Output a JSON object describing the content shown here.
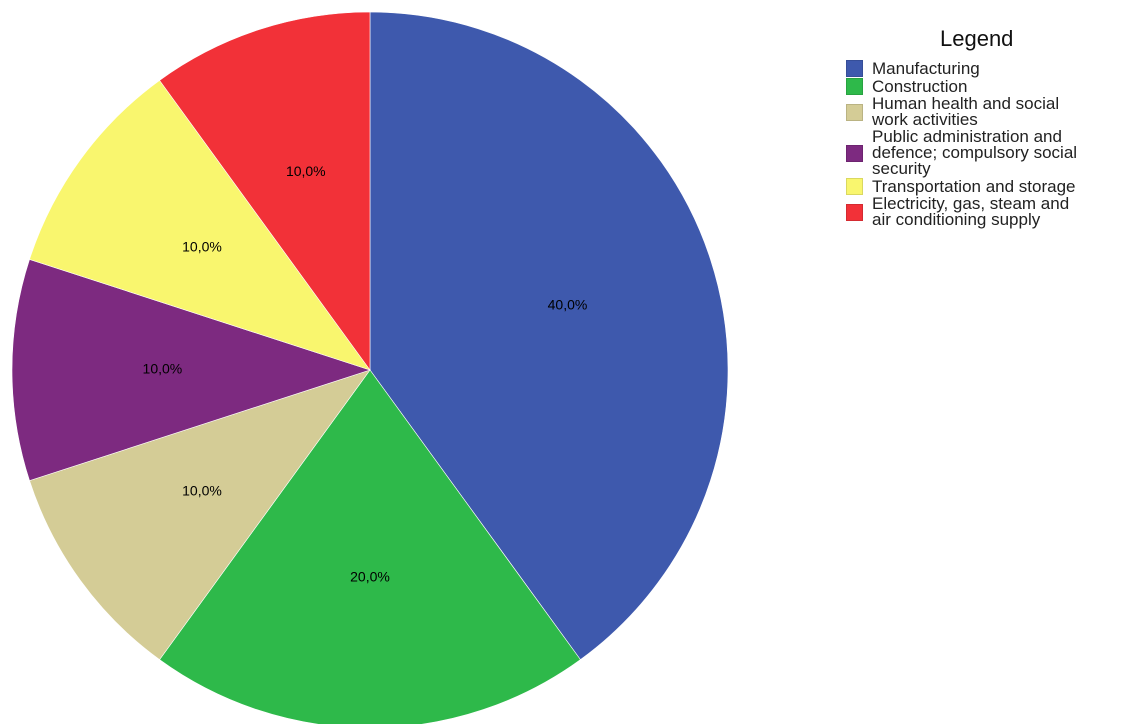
{
  "chart_data": {
    "type": "pie",
    "title": "",
    "categories": [
      "Manufacturing",
      "Construction",
      "Human health and social work activities",
      "Public administration and defence; compulsory social security",
      "Transportation and storage",
      "Electricity, gas, steam and air conditioning supply"
    ],
    "values": [
      40,
      20,
      10,
      10,
      10,
      10
    ],
    "data_labels": [
      "40,0%",
      "20,0%",
      "10,0%",
      "10,0%",
      "10,0%",
      "10,0%"
    ],
    "colors": [
      "#3e59ad",
      "#2eb94a",
      "#d4cc96",
      "#7d2a80",
      "#f9f66e",
      "#f23138"
    ],
    "start_angle": "12 o'clock",
    "direction": "clockwise",
    "legend": {
      "title": "Legend",
      "position": "right",
      "items": [
        {
          "lines": [
            "Manufacturing"
          ]
        },
        {
          "lines": [
            "Construction"
          ]
        },
        {
          "lines": [
            "Human health and social",
            "work activities"
          ]
        },
        {
          "lines": [
            "Public administration and",
            "defence; compulsory social",
            "security"
          ]
        },
        {
          "lines": [
            "Transportation and storage"
          ]
        },
        {
          "lines": [
            "Electricity, gas, steam and",
            "air conditioning supply"
          ]
        }
      ]
    }
  }
}
